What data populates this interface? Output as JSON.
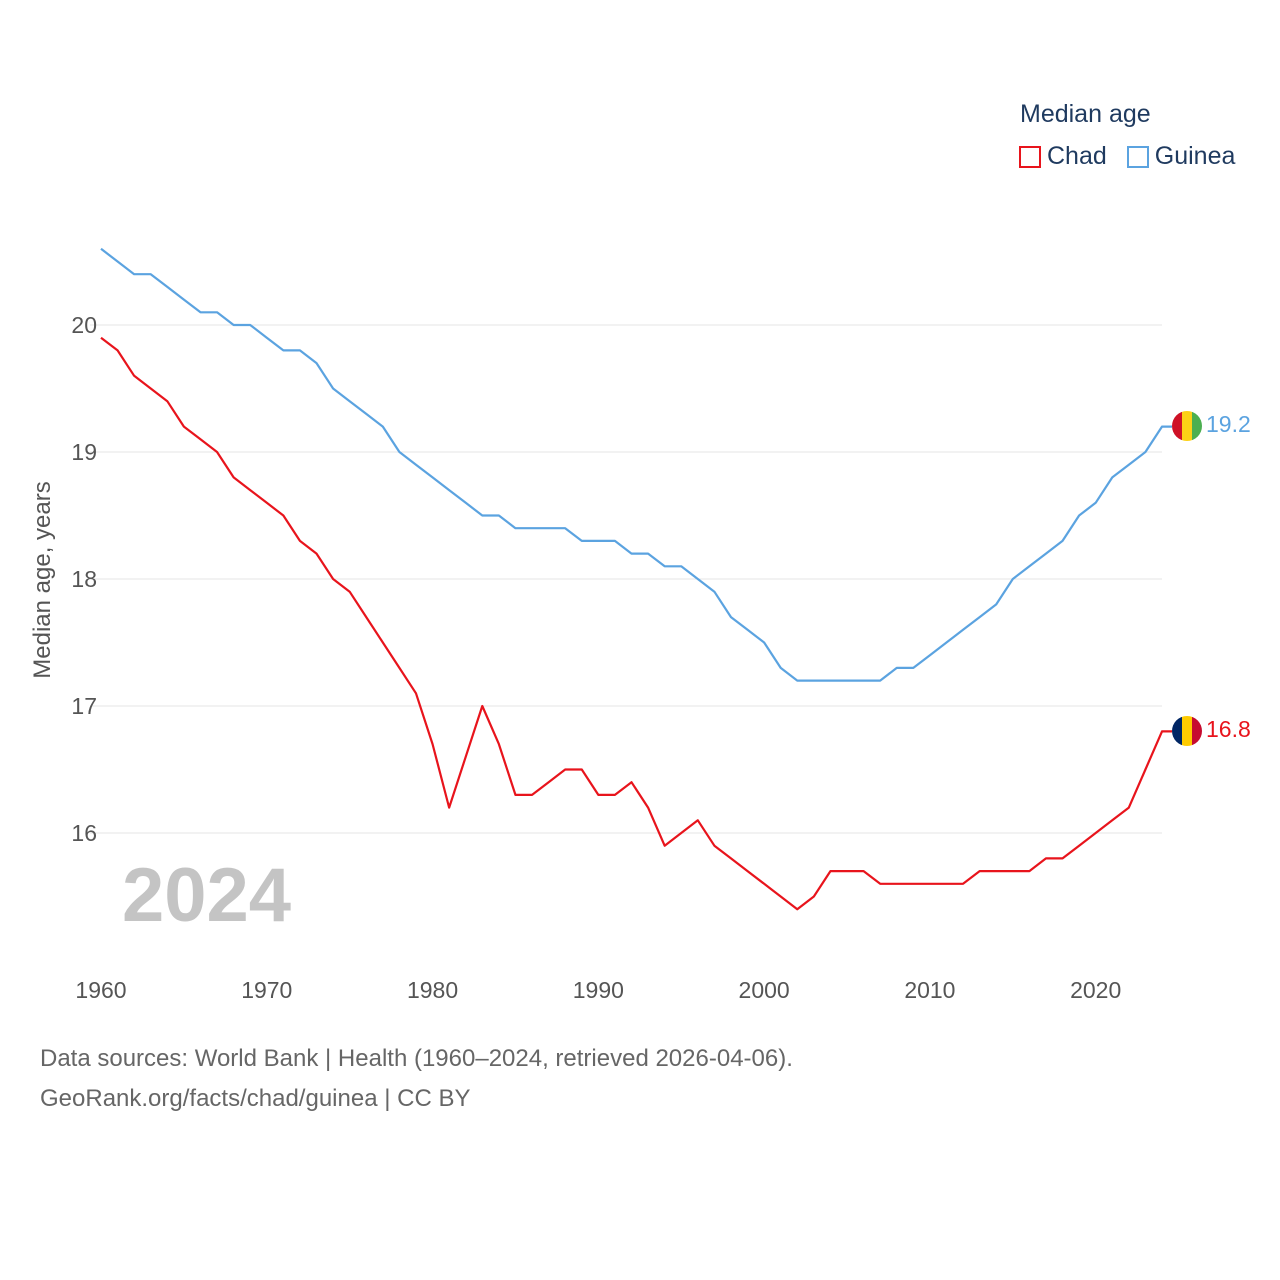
{
  "legend": {
    "title": "Median age",
    "items": [
      {
        "name": "Chad",
        "color": "#e8141c"
      },
      {
        "name": "Guinea",
        "color": "#5ba3e0"
      }
    ]
  },
  "footer": {
    "line1": "Data sources: World Bank | Health (1960–2024, retrieved 2026-04-06).",
    "line2": "GeoRank.org/facts/chad/guinea | CC BY"
  },
  "chart_data": {
    "type": "line",
    "title": "Median age",
    "ylabel": "Median age, years",
    "xlabel": "",
    "year_label": "2024",
    "xlim": [
      1960,
      2024
    ],
    "ylim": [
      15,
      21
    ],
    "y_ticks": [
      16,
      17,
      18,
      19,
      20
    ],
    "x_ticks": [
      1960,
      1970,
      1980,
      1990,
      2000,
      2010,
      2020
    ],
    "grid": true,
    "legend_position": "top-right",
    "x": [
      1960,
      1961,
      1962,
      1963,
      1964,
      1965,
      1966,
      1967,
      1968,
      1969,
      1970,
      1971,
      1972,
      1973,
      1974,
      1975,
      1976,
      1977,
      1978,
      1979,
      1980,
      1981,
      1982,
      1983,
      1984,
      1985,
      1986,
      1987,
      1988,
      1989,
      1990,
      1991,
      1992,
      1993,
      1994,
      1995,
      1996,
      1997,
      1998,
      1999,
      2000,
      2001,
      2002,
      2003,
      2004,
      2005,
      2006,
      2007,
      2008,
      2009,
      2010,
      2011,
      2012,
      2013,
      2014,
      2015,
      2016,
      2017,
      2018,
      2019,
      2020,
      2021,
      2022,
      2023,
      2024
    ],
    "series": [
      {
        "name": "Chad",
        "color": "#e8141c",
        "end_label": "16.8",
        "values": [
          19.9,
          19.8,
          19.6,
          19.5,
          19.4,
          19.2,
          19.1,
          19.0,
          18.8,
          18.7,
          18.6,
          18.5,
          18.3,
          18.2,
          18.0,
          17.9,
          17.7,
          17.5,
          17.3,
          17.1,
          16.7,
          16.2,
          16.6,
          17.0,
          16.7,
          16.3,
          16.3,
          16.4,
          16.5,
          16.5,
          16.3,
          16.3,
          16.4,
          16.2,
          15.9,
          16.0,
          16.1,
          15.9,
          15.8,
          15.7,
          15.6,
          15.5,
          15.4,
          15.5,
          15.7,
          15.7,
          15.7,
          15.6,
          15.6,
          15.6,
          15.6,
          15.6,
          15.6,
          15.7,
          15.7,
          15.7,
          15.7,
          15.8,
          15.8,
          15.9,
          16.0,
          16.1,
          16.2,
          16.5,
          16.8
        ]
      },
      {
        "name": "Guinea",
        "color": "#5ba3e0",
        "end_label": "19.2",
        "values": [
          20.6,
          20.5,
          20.4,
          20.4,
          20.3,
          20.2,
          20.1,
          20.1,
          20.0,
          20.0,
          19.9,
          19.8,
          19.8,
          19.7,
          19.5,
          19.4,
          19.3,
          19.2,
          19.0,
          18.9,
          18.8,
          18.7,
          18.6,
          18.5,
          18.5,
          18.4,
          18.4,
          18.4,
          18.4,
          18.3,
          18.3,
          18.3,
          18.2,
          18.2,
          18.1,
          18.1,
          18.0,
          17.9,
          17.7,
          17.6,
          17.5,
          17.3,
          17.2,
          17.2,
          17.2,
          17.2,
          17.2,
          17.2,
          17.3,
          17.3,
          17.4,
          17.5,
          17.6,
          17.7,
          17.8,
          18.0,
          18.1,
          18.2,
          18.3,
          18.5,
          18.6,
          18.8,
          18.9,
          19.0,
          19.2
        ]
      }
    ]
  }
}
